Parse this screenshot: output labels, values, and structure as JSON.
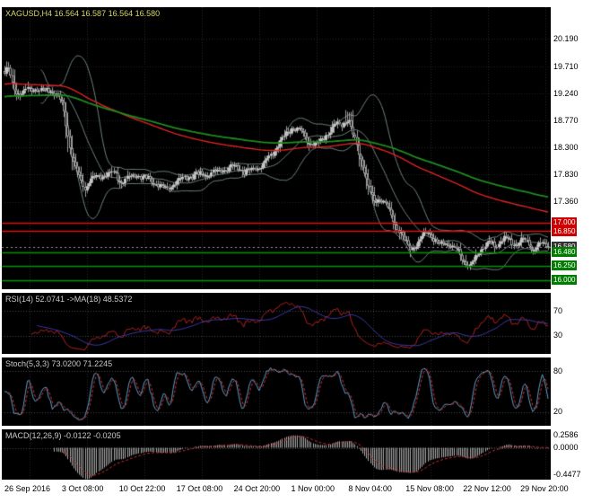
{
  "title": {
    "text": "XAGUSD,H4 16.564 16.587 16.564 16.580"
  },
  "panels": {
    "rsi": {
      "label": "RSI(14) 52.0741  ->MA(18) 48.5372"
    },
    "stoch": {
      "label": "Stoch(5,3,3) 73.0200 71.2245"
    },
    "macd": {
      "label": "MACD(12,26,9) -0.0122 -0.0205"
    }
  },
  "axis": {
    "price_ticks": [
      "20.190",
      "19.710",
      "19.240",
      "18.770",
      "18.300",
      "17.830",
      "17.360"
    ],
    "levels": {
      "r1": {
        "label": "17.000",
        "value": 17.0,
        "bg": "#cc0000"
      },
      "r2": {
        "label": "16.850",
        "value": 16.85,
        "bg": "#cc0000"
      },
      "cur": {
        "label": "16.580",
        "value": 16.58,
        "bg": "#333333"
      },
      "s1": {
        "label": "16.480",
        "value": 16.48,
        "bg": "#007d00"
      },
      "s2": {
        "label": "16.250",
        "value": 16.25,
        "bg": "#007d00"
      },
      "s3": {
        "label": "16.000",
        "value": 16.0,
        "bg": "#007d00"
      }
    },
    "rsi_levels": [
      "70",
      "30"
    ],
    "stoch_levels": [
      "80",
      "20"
    ],
    "macd_levels": [
      "0.2586",
      "0.0000",
      "-0.4477"
    ],
    "time_ticks": [
      "26 Sep 2016",
      "3 Oct 08:00",
      "10 Oct 22:00",
      "17 Oct 08:00",
      "24 Oct 20:00",
      "1 Nov 00:00",
      "8 Nov 04:00",
      "15 Nov 08:00",
      "22 Nov 12:00",
      "29 Nov 20:00"
    ]
  },
  "chart_data": {
    "type": "candlestick",
    "symbol": "XAGUSD",
    "timeframe": "H4",
    "current_ohlc": {
      "open": "16.564",
      "high": "16.587",
      "low": "16.564",
      "close": "16.580"
    },
    "n_candles": 285,
    "ylim": [
      15.84,
      20.74
    ],
    "y_ticks": [
      20.19,
      19.71,
      19.24,
      18.77,
      18.3,
      17.83,
      17.36
    ],
    "x_tick_labels": [
      "26 Sep 2016",
      "3 Oct 08:00",
      "10 Oct 22:00",
      "17 Oct 08:00",
      "24 Oct 20:00",
      "1 Nov 00:00",
      "8 Nov 04:00",
      "15 Nov 08:00",
      "22 Nov 12:00",
      "29 Nov 20:00"
    ],
    "hlines": [
      {
        "value": 17.0,
        "color": "#dd1111"
      },
      {
        "value": 16.85,
        "color": "#dd1111"
      },
      {
        "value": 16.48,
        "color": "#009400"
      },
      {
        "value": 16.25,
        "color": "#009400"
      },
      {
        "value": 16.0,
        "color": "#009400"
      }
    ],
    "current_price": 16.58,
    "close_path": [
      [
        0.0,
        19.58
      ],
      [
        0.006,
        19.7
      ],
      [
        0.012,
        19.45
      ],
      [
        0.02,
        19.28
      ],
      [
        0.03,
        19.22
      ],
      [
        0.04,
        19.3
      ],
      [
        0.055,
        19.33
      ],
      [
        0.07,
        19.28
      ],
      [
        0.085,
        19.32
      ],
      [
        0.095,
        19.22
      ],
      [
        0.105,
        19.1
      ],
      [
        0.112,
        18.75
      ],
      [
        0.12,
        18.3
      ],
      [
        0.13,
        17.95
      ],
      [
        0.14,
        17.72
      ],
      [
        0.148,
        17.6
      ],
      [
        0.155,
        17.72
      ],
      [
        0.165,
        17.78
      ],
      [
        0.18,
        17.82
      ],
      [
        0.2,
        17.86
      ],
      [
        0.215,
        17.72
      ],
      [
        0.23,
        17.78
      ],
      [
        0.245,
        17.83
      ],
      [
        0.26,
        17.76
      ],
      [
        0.275,
        17.7
      ],
      [
        0.29,
        17.62
      ],
      [
        0.3,
        17.58
      ],
      [
        0.315,
        17.7
      ],
      [
        0.33,
        17.78
      ],
      [
        0.35,
        17.82
      ],
      [
        0.37,
        17.84
      ],
      [
        0.39,
        17.88
      ],
      [
        0.41,
        17.94
      ],
      [
        0.425,
        17.98
      ],
      [
        0.44,
        17.88
      ],
      [
        0.455,
        17.92
      ],
      [
        0.47,
        17.98
      ],
      [
        0.485,
        18.1
      ],
      [
        0.5,
        18.32
      ],
      [
        0.515,
        18.5
      ],
      [
        0.53,
        18.66
      ],
      [
        0.545,
        18.58
      ],
      [
        0.56,
        18.4
      ],
      [
        0.575,
        18.36
      ],
      [
        0.59,
        18.52
      ],
      [
        0.605,
        18.66
      ],
      [
        0.62,
        18.72
      ],
      [
        0.632,
        18.78
      ],
      [
        0.64,
        18.55
      ],
      [
        0.65,
        18.28
      ],
      [
        0.66,
        17.95
      ],
      [
        0.67,
        17.55
      ],
      [
        0.678,
        17.38
      ],
      [
        0.688,
        17.44
      ],
      [
        0.698,
        17.32
      ],
      [
        0.708,
        17.18
      ],
      [
        0.718,
        16.98
      ],
      [
        0.728,
        16.8
      ],
      [
        0.738,
        16.64
      ],
      [
        0.748,
        16.56
      ],
      [
        0.758,
        16.62
      ],
      [
        0.768,
        16.74
      ],
      [
        0.778,
        16.86
      ],
      [
        0.788,
        16.72
      ],
      [
        0.798,
        16.62
      ],
      [
        0.81,
        16.66
      ],
      [
        0.822,
        16.58
      ],
      [
        0.834,
        16.5
      ],
      [
        0.845,
        16.34
      ],
      [
        0.855,
        16.24
      ],
      [
        0.862,
        16.32
      ],
      [
        0.872,
        16.48
      ],
      [
        0.882,
        16.62
      ],
      [
        0.892,
        16.64
      ],
      [
        0.902,
        16.58
      ],
      [
        0.912,
        16.7
      ],
      [
        0.922,
        16.74
      ],
      [
        0.932,
        16.64
      ],
      [
        0.942,
        16.62
      ],
      [
        0.952,
        16.7
      ],
      [
        0.962,
        16.66
      ],
      [
        0.972,
        16.56
      ],
      [
        0.982,
        16.6
      ],
      [
        0.992,
        16.62
      ],
      [
        1.0,
        16.58
      ]
    ],
    "overlays": {
      "bollinger": {
        "period": 20,
        "deviation": 2,
        "color": "#6e8080"
      },
      "ma_red": {
        "period": 160,
        "method": "ema",
        "color": "#dd2222"
      },
      "ma_green": {
        "period": 230,
        "method": "ema",
        "color": "#1e8a1e"
      }
    },
    "indicators": [
      {
        "name": "RSI",
        "params": [
          14
        ],
        "value": 52.0741,
        "ma_period": 18,
        "ma_value": 48.5372,
        "levels": [
          70,
          30
        ],
        "range": [
          0,
          100
        ]
      },
      {
        "name": "Stochastic",
        "params": [
          5,
          3,
          3
        ],
        "value": 73.02,
        "signal_value": 71.2245,
        "levels": [
          80,
          20
        ],
        "range": [
          0,
          100
        ]
      },
      {
        "name": "MACD",
        "params": [
          12,
          26,
          9
        ],
        "value": -0.0122,
        "signal_value": -0.0205,
        "scale_max": 0.2586,
        "scale_min": -0.4477
      }
    ]
  }
}
